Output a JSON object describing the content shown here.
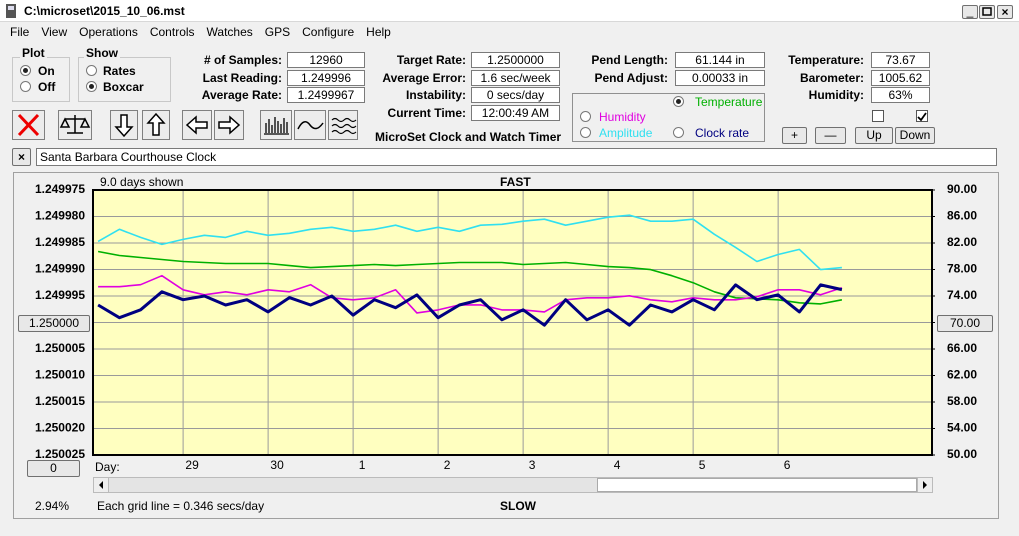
{
  "window": {
    "title": "C:\\microset\\2015_10_06.mst"
  },
  "menu": [
    "File",
    "View",
    "Operations",
    "Controls",
    "Watches",
    "GPS",
    "Configure",
    "Help"
  ],
  "plot_group": {
    "title": "Plot",
    "options": [
      "On",
      "Off"
    ]
  },
  "show_group": {
    "title": "Show",
    "options": [
      "Rates",
      "Boxcar"
    ]
  },
  "readouts": [
    [
      {
        "label": "# of Samples:",
        "value": "12960"
      },
      {
        "label": "Last Reading:",
        "value": "1.249996"
      },
      {
        "label": "Average Rate:",
        "value": "1.2499967"
      }
    ],
    [
      {
        "label": "Target Rate:",
        "value": "1.2500000"
      },
      {
        "label": "Average Error:",
        "value": "1.6 sec/week"
      },
      {
        "label": "Instability:",
        "value": "0 secs/day"
      },
      {
        "label": "Current Time:",
        "value": "12:00:49 AM"
      }
    ],
    [
      {
        "label": "Pend Length:",
        "value": "61.144 in"
      },
      {
        "label": "Pend Adjust:",
        "value": "0.00033 in"
      }
    ],
    [
      {
        "label": "Temperature:",
        "value": "73.67"
      },
      {
        "label": "Barometer:",
        "value": "1005.62"
      },
      {
        "label": "Humidity:",
        "value": "63%"
      }
    ]
  ],
  "app_title": "MicroSet Clock and Watch Timer",
  "clock_name": "Santa Barbara Courthouse Clock",
  "adjust_buttons": [
    "+",
    "—",
    "Up",
    "Down"
  ],
  "footer": {
    "zoom": "2.94%",
    "grid_note": "Each grid line = 0.346 secs/day"
  },
  "chart_data": {
    "type": "line",
    "top_label": "FAST",
    "bottom_label": "SLOW",
    "span_note": "9.0 days shown",
    "x_label": "Day:",
    "scroll_origin": "0",
    "grid": true,
    "background": "#ffffc0",
    "x": [
      -1,
      -0.75,
      -0.5,
      -0.25,
      0,
      0.25,
      0.5,
      0.75,
      1,
      1.25,
      1.5,
      1.75,
      2,
      2.25,
      2.5,
      2.75,
      3,
      3.25,
      3.5,
      3.75,
      4,
      4.25,
      4.5,
      4.75,
      5,
      5.25,
      5.5,
      5.75,
      6,
      6.25,
      6.5,
      6.75,
      7,
      7.25,
      7.5,
      7.75
    ],
    "xlim": [
      -1.06,
      8.81
    ],
    "xticks": [
      {
        "value": 0,
        "label": "29"
      },
      {
        "value": 1,
        "label": "30"
      },
      {
        "value": 2,
        "label": "1"
      },
      {
        "value": 3,
        "label": "2"
      },
      {
        "value": 4,
        "label": "3"
      },
      {
        "value": 5,
        "label": "4"
      },
      {
        "value": 6,
        "label": "5"
      },
      {
        "value": 7,
        "label": "6"
      }
    ],
    "ylim": [
      1.250025,
      1.249975
    ],
    "yticks": [
      1.249975,
      {
        "value": 1.24998,
        "label": "1.249980"
      },
      1.249985,
      {
        "value": 1.24999,
        "label": "1.249990"
      },
      1.249995,
      {
        "value": 1.25,
        "label": "1.250000"
      },
      1.250005,
      {
        "value": 1.25001,
        "label": "1.250010"
      },
      1.250015,
      {
        "value": 1.25002,
        "label": "1.250020"
      },
      1.250025
    ],
    "y2lim": [
      50,
      90
    ],
    "y2ticks": [
      {
        "value": 90,
        "label": "90.00"
      },
      {
        "value": 86,
        "label": "86.00"
      },
      {
        "value": 82,
        "label": "82.00"
      },
      {
        "value": 78,
        "label": "78.00"
      },
      {
        "value": 74,
        "label": "74.00"
      },
      {
        "value": 70,
        "label": "70.00"
      },
      {
        "value": 66,
        "label": "66.00"
      },
      {
        "value": 62,
        "label": "62.00"
      },
      {
        "value": 58,
        "label": "58.00"
      },
      {
        "value": 54,
        "label": "54.00"
      },
      {
        "value": 50,
        "label": "50.00"
      }
    ],
    "series": [
      {
        "name": "Temperature",
        "color": "#00b000",
        "axis": "y2",
        "selected": true,
        "values": [
          80.72,
          80.11,
          79.81,
          79.51,
          79.2,
          79.05,
          78.9,
          78.9,
          78.9,
          78.59,
          78.29,
          78.44,
          78.59,
          78.75,
          78.59,
          78.75,
          78.9,
          79.05,
          79.05,
          79.05,
          78.75,
          78.9,
          79.05,
          78.75,
          78.44,
          78.29,
          77.98,
          77.07,
          76.01,
          74.64,
          73.73,
          73.57,
          73.42,
          72.97,
          72.81,
          73.42
        ]
      },
      {
        "name": "Humidity",
        "color": "#e000e0",
        "axis": "y2",
        "values": [
          75.4,
          75.4,
          75.7,
          77.07,
          74.94,
          74.18,
          74.64,
          74.18,
          74.94,
          74.64,
          75.7,
          73.73,
          73.42,
          73.73,
          74.94,
          71.45,
          71.9,
          72.66,
          72.66,
          71.9,
          71.9,
          71.6,
          73.42,
          73.73,
          73.73,
          74.03,
          73.42,
          73.12,
          73.73,
          73.42,
          73.42,
          73.88,
          74.94,
          74.94,
          74.18,
          75.25
        ]
      },
      {
        "name": "Amplitude",
        "color": "#30e0f0",
        "axis": "y2",
        "values": [
          82.24,
          84.07,
          82.85,
          81.79,
          82.55,
          83.16,
          82.85,
          83.76,
          83.16,
          83.46,
          84.07,
          84.37,
          83.76,
          84.07,
          84.68,
          83.76,
          84.37,
          83.76,
          84.68,
          84.83,
          85.29,
          85.59,
          84.68,
          85.29,
          85.89,
          86.2,
          85.29,
          85.29,
          85.59,
          83.31,
          81.33,
          79.2,
          80.27,
          81.03,
          77.98,
          78.29
        ]
      },
      {
        "name": "Clock rate",
        "color": "#000080",
        "axis": "y",
        "values": [
          1.2499967,
          1.2499991,
          1.2499976,
          1.2499942,
          1.2499957,
          1.249995,
          1.2499967,
          1.2499957,
          1.249998,
          1.2499953,
          1.2499967,
          1.249995,
          1.2499986,
          1.2499957,
          1.2499972,
          1.2499948,
          1.2499991,
          1.2499967,
          1.2499957,
          1.2499995,
          1.2499976,
          1.2500005,
          1.2499957,
          1.2499995,
          1.2499976,
          1.2500005,
          1.2499967,
          1.249998,
          1.2499957,
          1.2499976,
          1.2499929,
          1.2499957,
          1.2499948,
          1.249998,
          1.2499929,
          1.2499938
        ]
      }
    ]
  }
}
